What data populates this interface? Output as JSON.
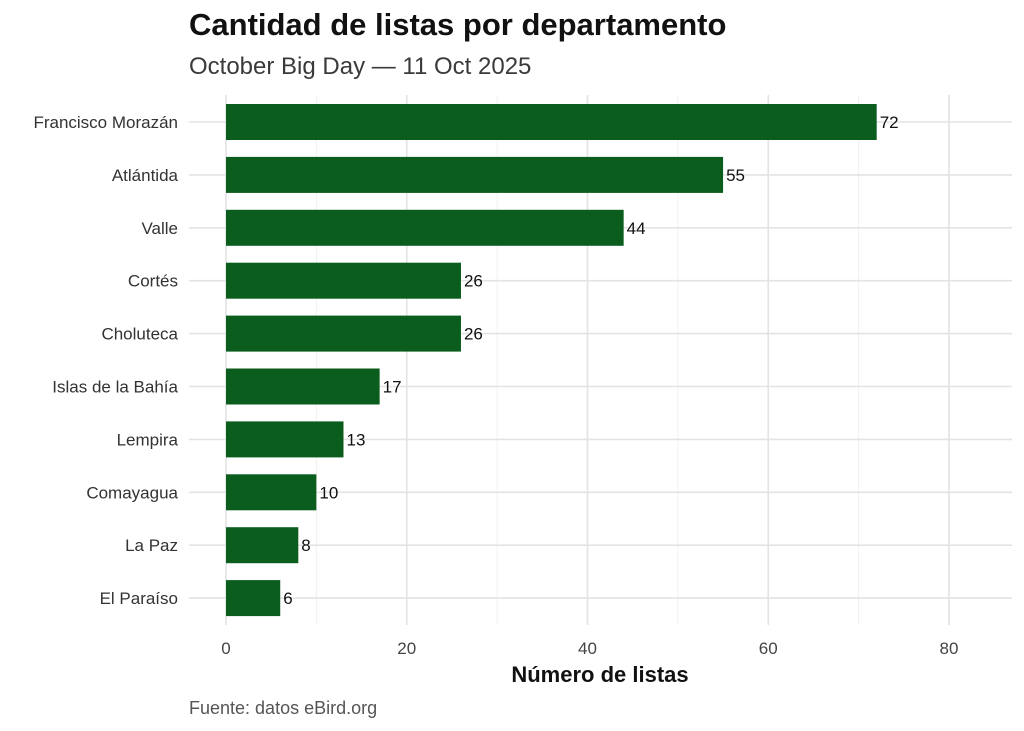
{
  "chart_data": {
    "type": "bar",
    "orientation": "horizontal",
    "title": "Cantidad de listas por departamento",
    "subtitle": "October Big Day — 11 Oct 2025",
    "xlabel": "Número de listas",
    "ylabel": "",
    "caption": "Fuente: datos eBird.org",
    "categories": [
      "Francisco Morazán",
      "Atlántida",
      "Valle",
      "Cortés",
      "Choluteca",
      "Islas de la Bahía",
      "Lempira",
      "Comayagua",
      "La Paz",
      "El Paraíso"
    ],
    "values": [
      72,
      55,
      44,
      26,
      26,
      17,
      13,
      10,
      8,
      6
    ],
    "xlim": [
      0,
      80
    ],
    "xticks": [
      0,
      20,
      40,
      60,
      80
    ],
    "grid": true,
    "legend": "none",
    "bar_color": "#0b5d1e"
  }
}
